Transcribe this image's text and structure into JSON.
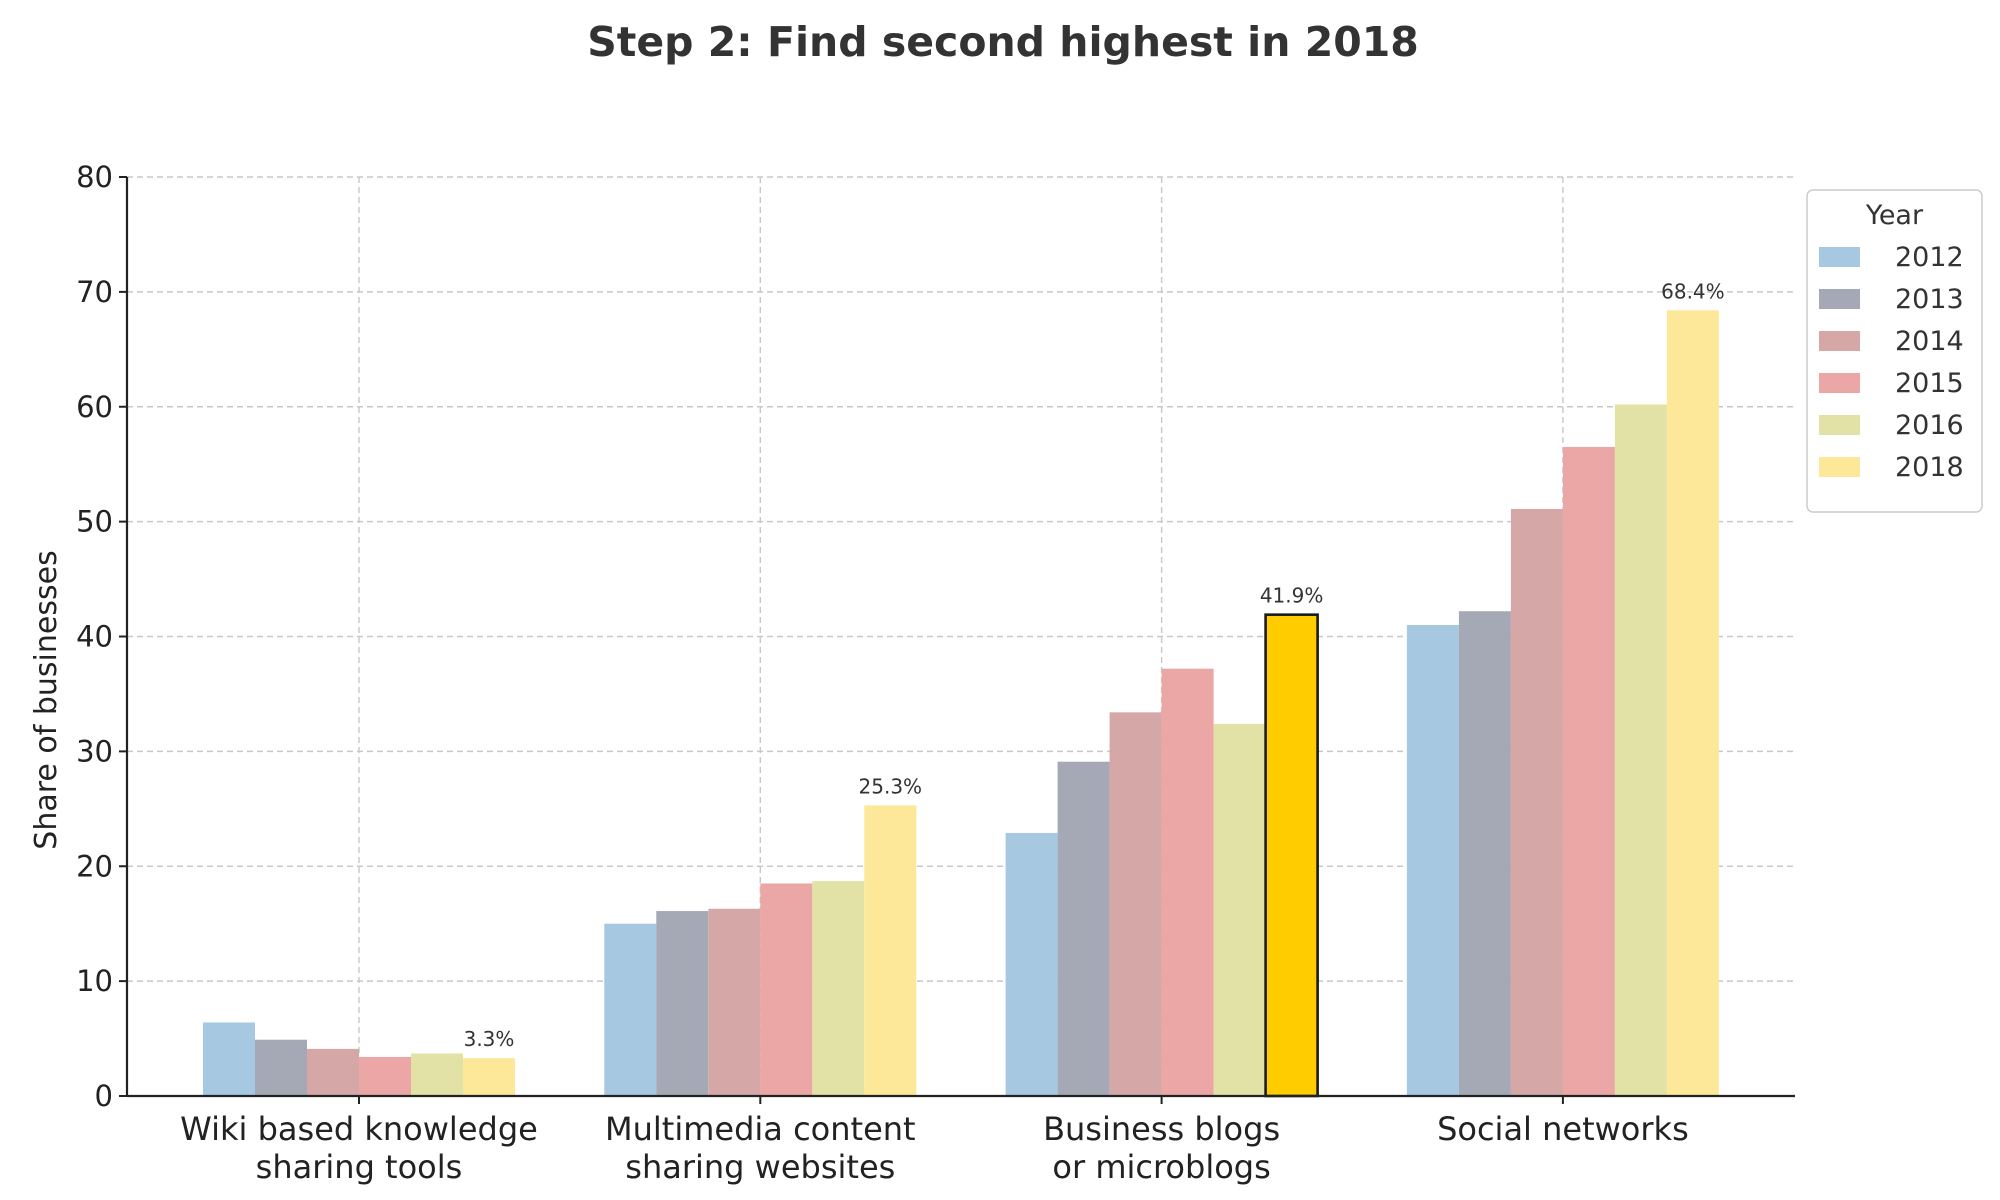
{
  "chart_data": {
    "type": "bar",
    "title": "Step 2: Find second highest in 2018",
    "xlabel": "",
    "ylabel": "Share of businesses",
    "ylim": [
      0,
      80
    ],
    "yticks": [
      0,
      10,
      20,
      30,
      40,
      50,
      60,
      70,
      80
    ],
    "grid": true,
    "legend": {
      "title": "Year",
      "placement": "right"
    },
    "categories": [
      [
        "Wiki based knowledge",
        "sharing tools"
      ],
      [
        "Multimedia content",
        "sharing websites"
      ],
      [
        "Business blogs",
        "or microblogs"
      ],
      [
        "Social networks"
      ]
    ],
    "series": [
      {
        "name": "2012",
        "color": "#a6c8e0",
        "values": [
          6.4,
          15.0,
          22.9,
          41.0
        ]
      },
      {
        "name": "2013",
        "color": "#a4a9b5",
        "values": [
          4.9,
          16.1,
          29.1,
          42.2
        ]
      },
      {
        "name": "2014",
        "color": "#d6a7a7",
        "values": [
          4.1,
          16.3,
          33.4,
          51.1
        ]
      },
      {
        "name": "2015",
        "color": "#eba6a6",
        "values": [
          3.4,
          18.5,
          37.2,
          56.5
        ]
      },
      {
        "name": "2016",
        "color": "#e2e2a6",
        "values": [
          3.7,
          18.7,
          32.4,
          60.2
        ]
      },
      {
        "name": "2018",
        "color": "#fde89a",
        "values": [
          3.3,
          25.3,
          41.9,
          68.4
        ]
      }
    ],
    "data_labels": [
      "3.3%",
      "25.3%",
      "41.9%",
      "68.4%"
    ],
    "highlight": {
      "series": "2018",
      "category_index": 2,
      "color": "#ffcc00",
      "edge_color": "#1a1a1a"
    }
  }
}
